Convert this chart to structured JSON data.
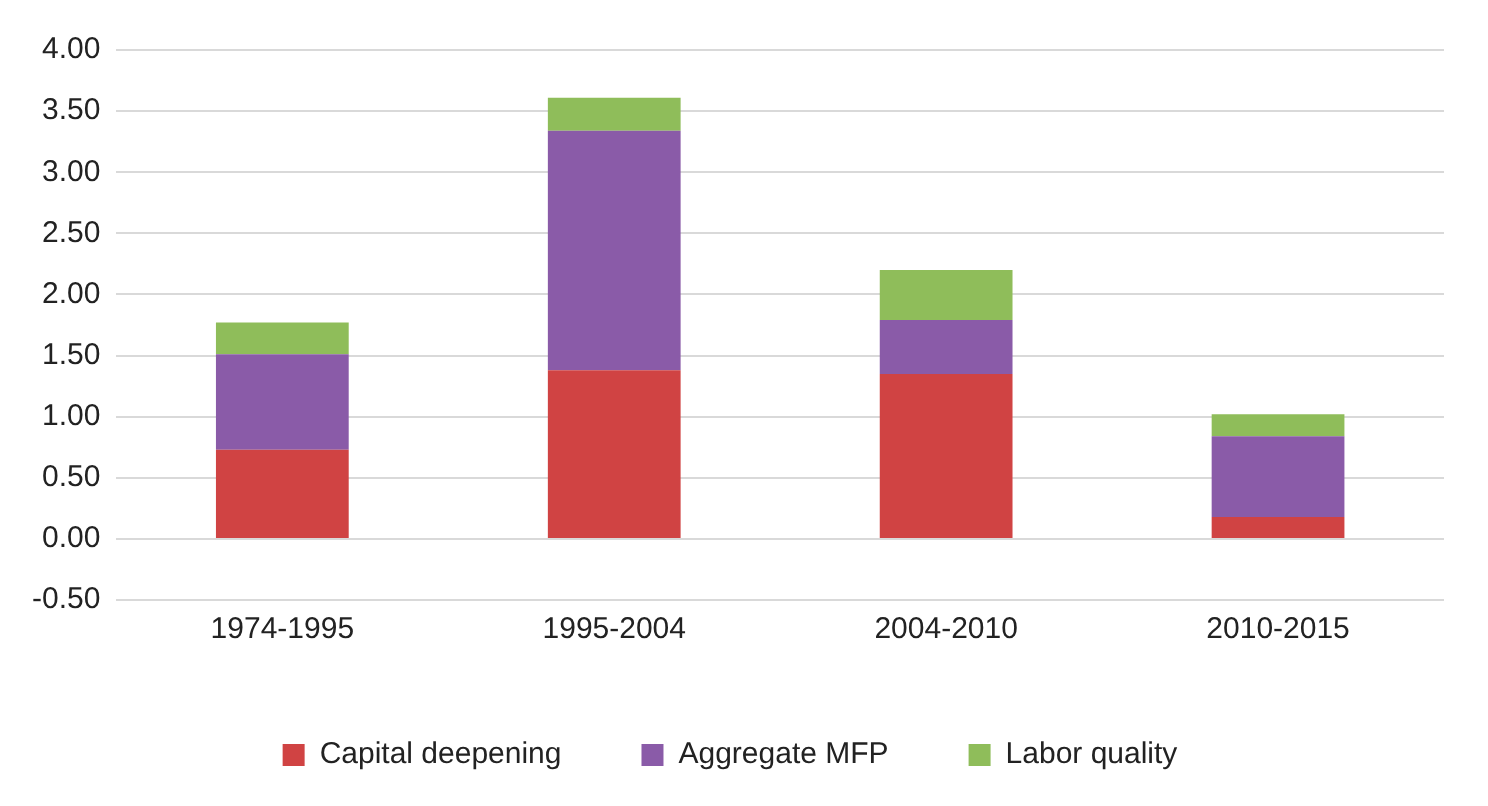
{
  "chart_data": {
    "type": "bar",
    "stacked": true,
    "categories": [
      "1974-1995",
      "1995-2004",
      "2004-2010",
      "2010-2015"
    ],
    "series": [
      {
        "name": "Capital deepening",
        "color": "#d04343",
        "values": [
          0.73,
          1.38,
          1.35,
          0.18
        ]
      },
      {
        "name": "Aggregate MFP",
        "color": "#8a5ba8",
        "values": [
          0.78,
          1.96,
          0.44,
          0.66
        ]
      },
      {
        "name": "Labor quality",
        "color": "#8fbd5a",
        "values": [
          0.26,
          0.27,
          0.41,
          0.18
        ]
      }
    ],
    "ylim": [
      -0.5,
      4
    ],
    "yticks": [
      {
        "value": -0.5,
        "label": "-0.50"
      },
      {
        "value": 0,
        "label": "0.00"
      },
      {
        "value": 0.5,
        "label": "0.50"
      },
      {
        "value": 1,
        "label": "1.00"
      },
      {
        "value": 1.5,
        "label": "1.50"
      },
      {
        "value": 2,
        "label": "2.00"
      },
      {
        "value": 2.5,
        "label": "2.50"
      },
      {
        "value": 3,
        "label": "3.00"
      },
      {
        "value": 3.5,
        "label": "3.50"
      },
      {
        "value": 4,
        "label": "4.00"
      }
    ],
    "grid": "y",
    "legend": "bottom"
  }
}
